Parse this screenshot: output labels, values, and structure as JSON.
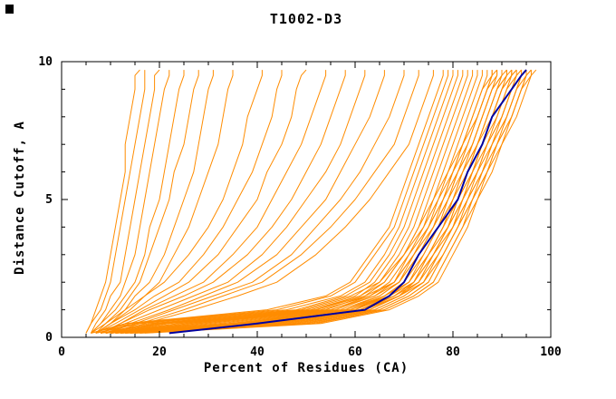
{
  "chart_data": {
    "type": "line",
    "title": "T1002-D3",
    "xlabel": "Percent of Residues (CA)",
    "ylabel": "Distance Cutoff, A",
    "xlim": [
      0,
      100
    ],
    "ylim": [
      0,
      10
    ],
    "x_major_ticks": [
      0,
      20,
      40,
      60,
      80,
      100
    ],
    "x_minor_step": 5,
    "y_major_ticks": [
      0,
      5,
      10
    ],
    "y_minor_step": 1,
    "colors": {
      "model_lines": "#FF8C00",
      "highlight_line": "#0000A0",
      "axis": "#000000",
      "background": "#FFFFFF",
      "text": "#000000"
    },
    "cutoffs": [
      0.15,
      0.5,
      1,
      1.5,
      2,
      3,
      4,
      5,
      6,
      7,
      8,
      9,
      9.5,
      9.7
    ],
    "orange_curves": [
      [
        5,
        6,
        7,
        8,
        9,
        10,
        11,
        12,
        13,
        13,
        14,
        15,
        15,
        16
      ],
      [
        5,
        6,
        8,
        9,
        10,
        11,
        12,
        13,
        14,
        15,
        16,
        17,
        17,
        17
      ],
      [
        6,
        7,
        9,
        10,
        12,
        13,
        14,
        15,
        16,
        17,
        18,
        19,
        19,
        20
      ],
      [
        6,
        8,
        10,
        12,
        13,
        15,
        16,
        17,
        18,
        19,
        20,
        21,
        22,
        22
      ],
      [
        6,
        8,
        11,
        13,
        15,
        17,
        18,
        20,
        21,
        22,
        23,
        24,
        25,
        25
      ],
      [
        7,
        9,
        12,
        14,
        16,
        18,
        20,
        22,
        23,
        25,
        26,
        27,
        28,
        28
      ],
      [
        7,
        10,
        13,
        15,
        18,
        21,
        23,
        25,
        27,
        28,
        29,
        30,
        31,
        31
      ],
      [
        7,
        10,
        14,
        17,
        20,
        23,
        26,
        28,
        30,
        32,
        33,
        34,
        35,
        35
      ],
      [
        6,
        9,
        13,
        17,
        21,
        26,
        30,
        33,
        35,
        37,
        38,
        40,
        41,
        41
      ],
      [
        7,
        10,
        15,
        19,
        24,
        29,
        33,
        36,
        39,
        41,
        43,
        44,
        45,
        45
      ],
      [
        7,
        11,
        16,
        21,
        26,
        32,
        36,
        40,
        42,
        45,
        47,
        48,
        49,
        50
      ],
      [
        8,
        12,
        17,
        23,
        29,
        35,
        40,
        43,
        46,
        49,
        51,
        53,
        54,
        54
      ],
      [
        8,
        12,
        18,
        25,
        31,
        38,
        43,
        47,
        50,
        53,
        55,
        57,
        58,
        58
      ],
      [
        8,
        13,
        20,
        27,
        34,
        41,
        46,
        50,
        54,
        57,
        59,
        61,
        62,
        62
      ],
      [
        9,
        14,
        22,
        29,
        36,
        44,
        49,
        54,
        57,
        60,
        63,
        65,
        66,
        66
      ],
      [
        9,
        15,
        23,
        31,
        39,
        47,
        52,
        57,
        61,
        64,
        67,
        69,
        70,
        70
      ],
      [
        10,
        16,
        25,
        33,
        41,
        49,
        55,
        60,
        64,
        68,
        70,
        72,
        73,
        73
      ],
      [
        10,
        17,
        27,
        36,
        44,
        52,
        58,
        63,
        67,
        71,
        73,
        75,
        76,
        76
      ],
      [
        8,
        18,
        50,
        60,
        64,
        68,
        71,
        73,
        75,
        77,
        79,
        81,
        82,
        82
      ],
      [
        8,
        20,
        52,
        61,
        65,
        69,
        72,
        74,
        76,
        78,
        80,
        82,
        83,
        83
      ],
      [
        9,
        22,
        54,
        62,
        66,
        70,
        73,
        75,
        77,
        79,
        81,
        83,
        84,
        84
      ],
      [
        9,
        24,
        55,
        63,
        67,
        71,
        74,
        76,
        78,
        80,
        82,
        84,
        85,
        85
      ],
      [
        9,
        26,
        56,
        64,
        68,
        72,
        75,
        77,
        79,
        81,
        83,
        85,
        86,
        86
      ],
      [
        10,
        28,
        57,
        65,
        69,
        72,
        75,
        78,
        80,
        82,
        84,
        86,
        87,
        87
      ],
      [
        10,
        30,
        58,
        65,
        69,
        73,
        76,
        78,
        80,
        82,
        85,
        87,
        88,
        88
      ],
      [
        10,
        32,
        59,
        66,
        70,
        73,
        76,
        79,
        81,
        83,
        85,
        87,
        88,
        89
      ],
      [
        11,
        34,
        60,
        66,
        70,
        74,
        77,
        79,
        81,
        84,
        86,
        88,
        89,
        89
      ],
      [
        11,
        36,
        60,
        67,
        71,
        74,
        77,
        80,
        82,
        84,
        86,
        88,
        90,
        90
      ],
      [
        11,
        38,
        61,
        67,
        71,
        75,
        78,
        80,
        82,
        85,
        87,
        89,
        90,
        91
      ],
      [
        12,
        40,
        61,
        68,
        72,
        75,
        78,
        81,
        83,
        85,
        87,
        89,
        91,
        91
      ],
      [
        12,
        42,
        62,
        68,
        72,
        75,
        79,
        81,
        83,
        86,
        88,
        90,
        91,
        92
      ],
      [
        12,
        44,
        62,
        69,
        72,
        76,
        79,
        81,
        84,
        86,
        88,
        90,
        92,
        92
      ],
      [
        7,
        16,
        48,
        58,
        63,
        67,
        70,
        72,
        74,
        76,
        78,
        80,
        81,
        81
      ],
      [
        7,
        15,
        46,
        57,
        62,
        66,
        69,
        71,
        73,
        75,
        77,
        79,
        80,
        80
      ],
      [
        6,
        14,
        44,
        55,
        60,
        64,
        68,
        70,
        72,
        74,
        76,
        78,
        79,
        79
      ],
      [
        6,
        13,
        42,
        54,
        59,
        63,
        67,
        69,
        71,
        73,
        75,
        77,
        78,
        78
      ],
      [
        13,
        45,
        63,
        69,
        73,
        76,
        79,
        82,
        84,
        86,
        89,
        91,
        92,
        93
      ],
      [
        13,
        46,
        63,
        69,
        73,
        76,
        80,
        82,
        84,
        87,
        89,
        91,
        93,
        93
      ],
      [
        14,
        47,
        64,
        70,
        74,
        77,
        80,
        82,
        85,
        87,
        90,
        92,
        93,
        94
      ],
      [
        14,
        48,
        64,
        70,
        74,
        77,
        80,
        83,
        85,
        88,
        90,
        92,
        94,
        94
      ],
      [
        15,
        49,
        65,
        71,
        75,
        78,
        81,
        83,
        86,
        88,
        91,
        93,
        94,
        95
      ],
      [
        15,
        50,
        65,
        71,
        75,
        78,
        81,
        84,
        86,
        89,
        91,
        93,
        95,
        95
      ],
      [
        16,
        51,
        66,
        72,
        76,
        79,
        82,
        84,
        87,
        89,
        92,
        94,
        95,
        96
      ],
      [
        16,
        52,
        66,
        72,
        76,
        79,
        82,
        85,
        87,
        90,
        92,
        94,
        96,
        96
      ],
      [
        17,
        53,
        67,
        73,
        77,
        80,
        83,
        85,
        88,
        90,
        93,
        95,
        96,
        97
      ],
      [
        11,
        35,
        58,
        66,
        71,
        75,
        78,
        81,
        84,
        86,
        88,
        90,
        92,
        93
      ],
      [
        10,
        28,
        55,
        64,
        69,
        73,
        77,
        80,
        83,
        85,
        88,
        90,
        92,
        92
      ],
      [
        9,
        24,
        52,
        62,
        68,
        72,
        76,
        79,
        82,
        85,
        87,
        89,
        91,
        91
      ],
      [
        10,
        26,
        53,
        63,
        68,
        71,
        75,
        78,
        81,
        84,
        86,
        88,
        90,
        90
      ],
      [
        12,
        37,
        59,
        67,
        72,
        76,
        79,
        82,
        85,
        87,
        90,
        92,
        93,
        94
      ],
      [
        8,
        21,
        51,
        61,
        66,
        70,
        74,
        77,
        80,
        83,
        85,
        87,
        89,
        89
      ],
      [
        14,
        43,
        62,
        69,
        74,
        78,
        81,
        84,
        87,
        89,
        92,
        94,
        95,
        96
      ],
      [
        9,
        19,
        49,
        59,
        65,
        70,
        73,
        76,
        79,
        82,
        84,
        86,
        88,
        88
      ],
      [
        13,
        41,
        61,
        68,
        73,
        77,
        80,
        83,
        86,
        88,
        91,
        93,
        94,
        95
      ]
    ],
    "blue_curve": [
      22,
      40,
      62,
      67,
      70,
      73,
      77,
      81,
      83,
      86,
      88,
      92,
      94,
      95
    ]
  }
}
